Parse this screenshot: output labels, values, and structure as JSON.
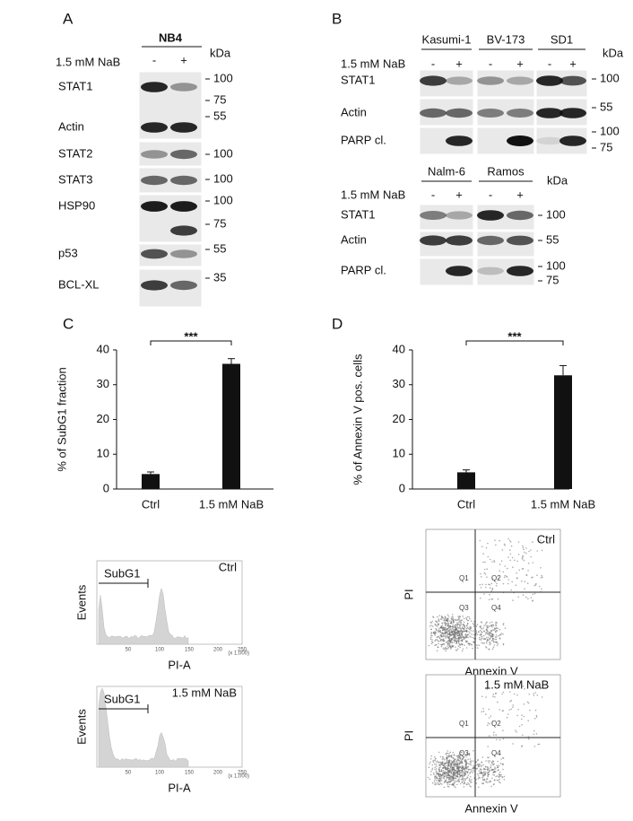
{
  "panel_a": {
    "label": "A",
    "cell_line": "NB4",
    "unit": "kDa",
    "treatment": "1.5 mM NaB",
    "lanes": [
      "-",
      "+"
    ],
    "proteins": [
      "STAT1",
      "Actin",
      "STAT2",
      "STAT3",
      "HSP90",
      "p53",
      "BCL-XL"
    ],
    "markers": [
      "100",
      "75",
      "55",
      "100",
      "100",
      "100",
      "75",
      "55",
      "35"
    ]
  },
  "panel_b": {
    "label": "B",
    "groups": [
      {
        "cell_lines": [
          "Kasumi-1",
          "BV-173",
          "SD1"
        ],
        "unit": "kDa",
        "treatment": "1.5 mM NaB",
        "lanes": [
          "-",
          "+",
          "-",
          "+",
          "-",
          "+"
        ],
        "proteins": [
          "STAT1",
          "Actin",
          "PARP cl."
        ],
        "markers": [
          "100",
          "55",
          "100",
          "75"
        ]
      },
      {
        "cell_lines": [
          "Nalm-6",
          "Ramos"
        ],
        "unit": "kDa",
        "treatment": "1.5 mM NaB",
        "lanes": [
          "-",
          "+",
          "-",
          "+"
        ],
        "proteins": [
          "STAT1",
          "Actin",
          "PARP cl."
        ],
        "markers": [
          "100",
          "55",
          "100",
          "75"
        ]
      }
    ]
  },
  "chart_data": [
    {
      "type": "bar",
      "label": "C",
      "y_label": "% of SubG1 fraction",
      "categories": [
        "Ctrl",
        "1.5 mM NaB"
      ],
      "values": [
        4.3,
        36
      ],
      "errors": [
        0.6,
        1.5
      ],
      "color": "#111111",
      "ylim": [
        0,
        40
      ],
      "yticks": [
        0,
        10,
        20,
        30,
        40
      ],
      "significance": "***"
    },
    {
      "type": "bar",
      "label": "D",
      "y_label": "% of Annexin V pos. cells",
      "categories": [
        "Ctrl",
        "1.5 mM NaB"
      ],
      "values": [
        4.8,
        32.7
      ],
      "errors": [
        0.7,
        2.8
      ],
      "color": "#111111",
      "ylim": [
        0,
        40
      ],
      "yticks": [
        0,
        10,
        20,
        30,
        40
      ],
      "significance": "***"
    }
  ],
  "histograms": {
    "x_label": "PI-A",
    "y_label": "Events",
    "gate": "SubG1",
    "x_ticks": [
      "50",
      "100",
      "150",
      "200",
      "250"
    ],
    "x_scale": "(x 1,000)",
    "conditions": [
      "Ctrl",
      "1.5 mM NaB"
    ]
  },
  "flow_plots": {
    "x_label": "Annexin V",
    "y_label": "PI",
    "quadrants": [
      "Q1",
      "Q2",
      "Q3",
      "Q4"
    ],
    "conditions": [
      "Ctrl",
      "1.5 mM NaB"
    ]
  }
}
